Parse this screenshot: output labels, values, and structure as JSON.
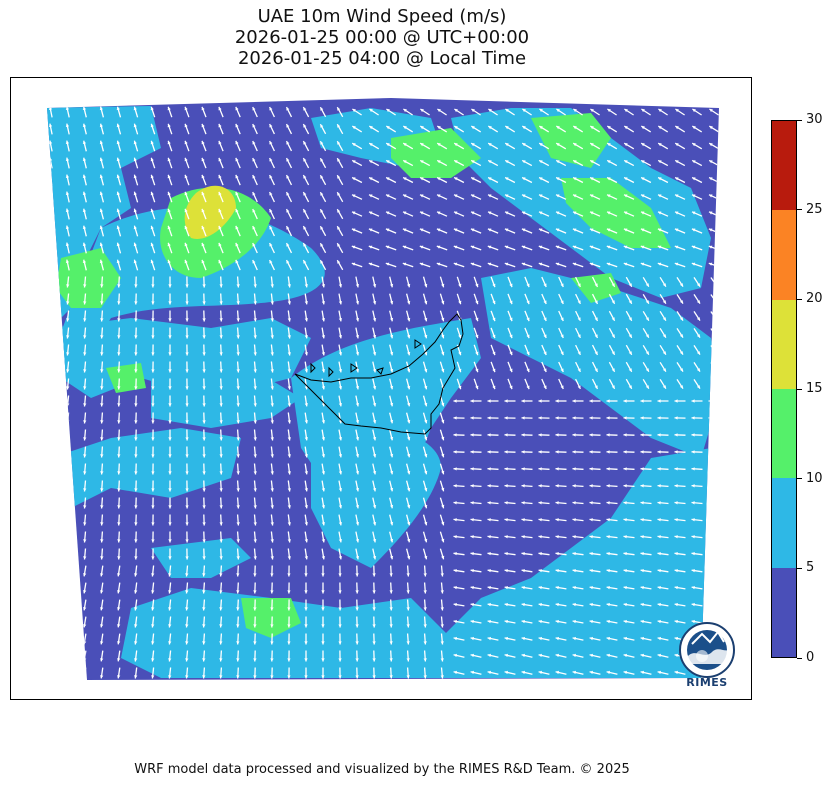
{
  "title": {
    "line1": "UAE 10m Wind Speed (m/s)",
    "line2": "2026-01-25 00:00 @ UTC+00:00",
    "line3": "2026-01-25 04:00 @ Local Time"
  },
  "colorbar": {
    "levels": [
      "0",
      "5",
      "10",
      "15",
      "20",
      "25",
      "30"
    ],
    "colors": [
      "#4a4fb8",
      "#2eb8e6",
      "#55f06a",
      "#dde138",
      "#fb8324",
      "#b81b0d"
    ]
  },
  "map": {
    "background_color": "#4a4fb8",
    "wind_arrow_color": "#ffffff",
    "border_color": "#000000"
  },
  "logo": {
    "text": "RIMES"
  },
  "footer": {
    "credit": "WRF model data processed and visualized by the RIMES R&D Team. © 2025"
  }
}
